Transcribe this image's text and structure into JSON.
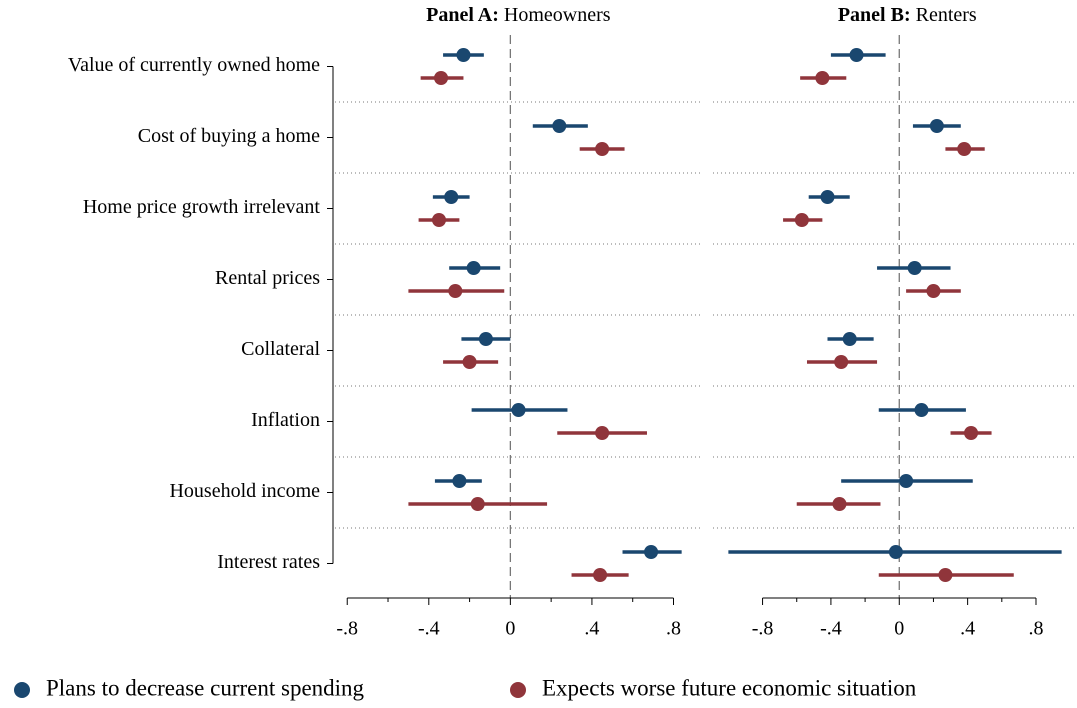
{
  "chart_data": [
    {
      "type": "dot_whisker",
      "panel_label": "Panel A:",
      "title": "Homeowners",
      "categories": [
        "Value of currently owned home",
        "Cost of buying a home",
        "Home price growth irrelevant",
        "Rental prices",
        "Collateral",
        "Inflation",
        "Household income",
        "Interest rates"
      ],
      "xlim": [
        -0.86,
        0.93
      ],
      "xticks": [
        {
          "value": -0.8,
          "label": "-.8"
        },
        {
          "value": -0.4,
          "label": "-.4"
        },
        0,
        {
          "value": 0.4,
          "label": ".4"
        },
        {
          "value": 0.8,
          "label": ".8"
        }
      ],
      "xticks_minor": [
        -0.6,
        -0.2,
        0.2,
        0.6
      ],
      "reference_line": 0,
      "series": [
        {
          "name": "Plans to decrease current spending",
          "color": "#1a476f",
          "values": [
            -0.23,
            0.24,
            -0.29,
            -0.18,
            -0.12,
            0.04,
            -0.25,
            0.69
          ],
          "lower": [
            -0.33,
            0.11,
            -0.38,
            -0.3,
            -0.24,
            -0.19,
            -0.37,
            0.55
          ],
          "upper": [
            -0.13,
            0.38,
            -0.2,
            -0.05,
            0.0,
            0.28,
            -0.14,
            0.84
          ]
        },
        {
          "name": "Expects worse future economic situation",
          "color": "#90353b",
          "values": [
            -0.34,
            0.45,
            -0.35,
            -0.27,
            -0.2,
            0.45,
            -0.16,
            0.44
          ],
          "lower": [
            -0.44,
            0.34,
            -0.45,
            -0.5,
            -0.33,
            0.23,
            -0.5,
            0.3
          ],
          "upper": [
            -0.23,
            0.56,
            -0.25,
            -0.03,
            -0.06,
            0.67,
            0.18,
            0.58
          ]
        }
      ]
    },
    {
      "type": "dot_whisker",
      "panel_label": "Panel B:",
      "title": "Renters",
      "xlim": [
        -1.09,
        1.04
      ],
      "xticks": [
        {
          "value": -0.8,
          "label": "-.8"
        },
        {
          "value": -0.4,
          "label": "-.4"
        },
        0,
        {
          "value": 0.4,
          "label": ".4"
        },
        {
          "value": 0.8,
          "label": ".8"
        }
      ],
      "xticks_minor": [
        -0.6,
        -0.2,
        0.2,
        0.6
      ],
      "reference_line": 0,
      "series": [
        {
          "color": "#1a476f",
          "values": [
            -0.25,
            0.22,
            -0.42,
            0.09,
            -0.29,
            0.13,
            0.04,
            -0.02
          ],
          "lower": [
            -0.4,
            0.08,
            -0.53,
            -0.13,
            -0.42,
            -0.12,
            -0.34,
            -1.0
          ],
          "upper": [
            -0.08,
            0.36,
            -0.29,
            0.3,
            -0.15,
            0.39,
            0.43,
            0.95
          ]
        },
        {
          "color": "#90353b",
          "values": [
            -0.45,
            0.38,
            -0.57,
            0.2,
            -0.34,
            0.42,
            -0.35,
            0.27
          ],
          "lower": [
            -0.58,
            0.27,
            -0.68,
            0.04,
            -0.54,
            0.3,
            -0.6,
            -0.12
          ],
          "upper": [
            -0.31,
            0.5,
            -0.45,
            0.36,
            -0.13,
            0.54,
            -0.11,
            0.67
          ]
        }
      ]
    }
  ]
}
